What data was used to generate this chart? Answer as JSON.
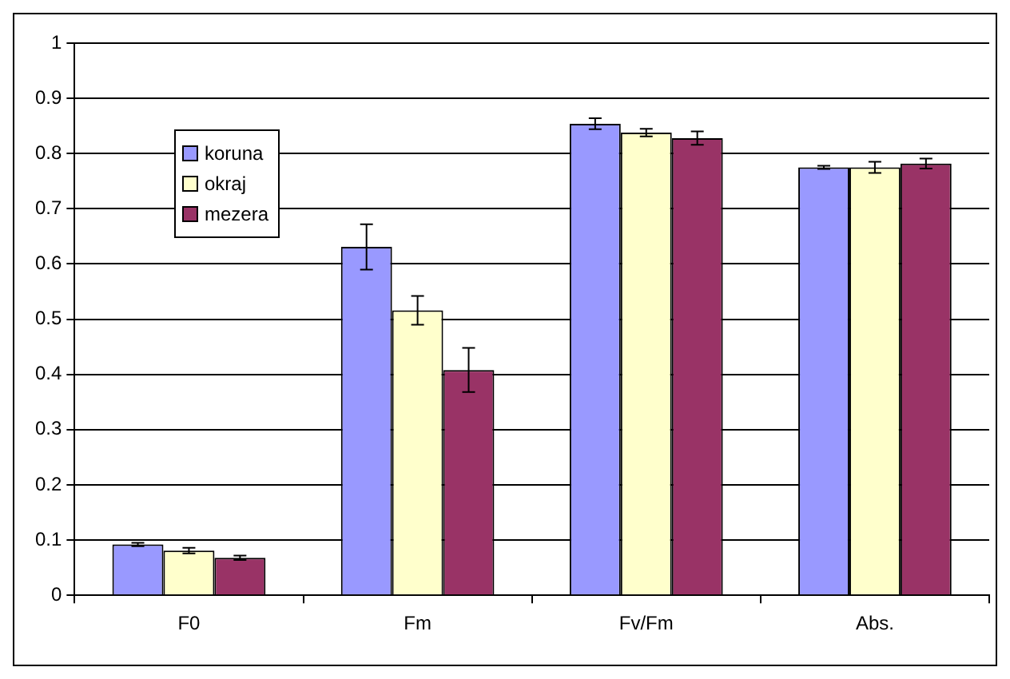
{
  "chart_data": {
    "type": "bar",
    "categories": [
      "F0",
      "Fm",
      "Fv/Fm",
      "Abs."
    ],
    "series": [
      {
        "name": "koruna",
        "color": "#9999ff",
        "values": [
          0.092,
          0.631,
          0.854,
          0.775
        ],
        "errors": [
          0.003,
          0.041,
          0.01,
          0.003
        ]
      },
      {
        "name": "okraj",
        "color": "#ffffcc",
        "values": [
          0.081,
          0.516,
          0.838,
          0.775
        ],
        "errors": [
          0.005,
          0.026,
          0.007,
          0.01
        ]
      },
      {
        "name": "mezera",
        "color": "#993366",
        "values": [
          0.068,
          0.408,
          0.828,
          0.782
        ],
        "errors": [
          0.004,
          0.04,
          0.012,
          0.009
        ]
      }
    ],
    "ylim": [
      0,
      1
    ],
    "yticks": [
      0,
      0.1,
      0.2,
      0.3,
      0.4,
      0.5,
      0.6,
      0.7,
      0.8,
      0.9,
      1
    ],
    "grid": "y",
    "legend": "top left"
  }
}
